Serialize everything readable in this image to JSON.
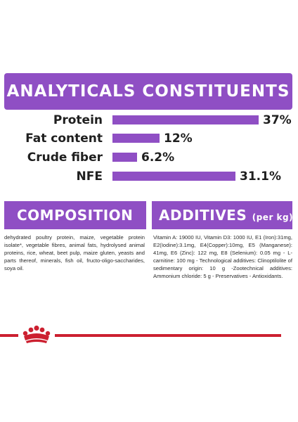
{
  "header": {
    "title": "ANALYTICALS CONSTITUENTS"
  },
  "chart_data": {
    "type": "bar",
    "categories": [
      "Protein",
      "Fat content",
      "Crude fiber",
      "NFE"
    ],
    "values": [
      37,
      12,
      6.2,
      31.1
    ],
    "value_labels": [
      "37%",
      "12%",
      "6.2%",
      "31.1%"
    ],
    "unit": "%",
    "color": "#8f4fc4"
  },
  "composition": {
    "title": "COMPOSITION",
    "text": "dehydrated poultry protein, maize, vegetable protein isolate*, vegetable fibres, animal fats, hydrolysed animal proteins, rice, wheat, beet pulp, maize gluten, yeasts and parts thereof, minerals, fish oil, fructo-oligo-saccharides, soya oil."
  },
  "additives": {
    "title": "ADDITIVES",
    "unit": "(per kg)",
    "text": "Vitamin A: 19000 IU, Vitamin D3: 1000 IU, E1 (Iron):31mg, E2(Iodine):3.1mg, E4(Copper):10mg, E5 (Manganese): 41mg, E6 (Zinc): 122 mg, E8 (Selenium): 0.05 mg - L- carnitine: 100 mg - Technological additives: Clinoptilolite of sedimentary origin: 10 g -Zootechnical additives: Ammonium chloride: 5 g - Preservatives - Antioxidants."
  },
  "colors": {
    "accent": "#8f4fc4",
    "brand_red": "#cc2030"
  },
  "icons": {
    "brand": "crown-icon"
  }
}
